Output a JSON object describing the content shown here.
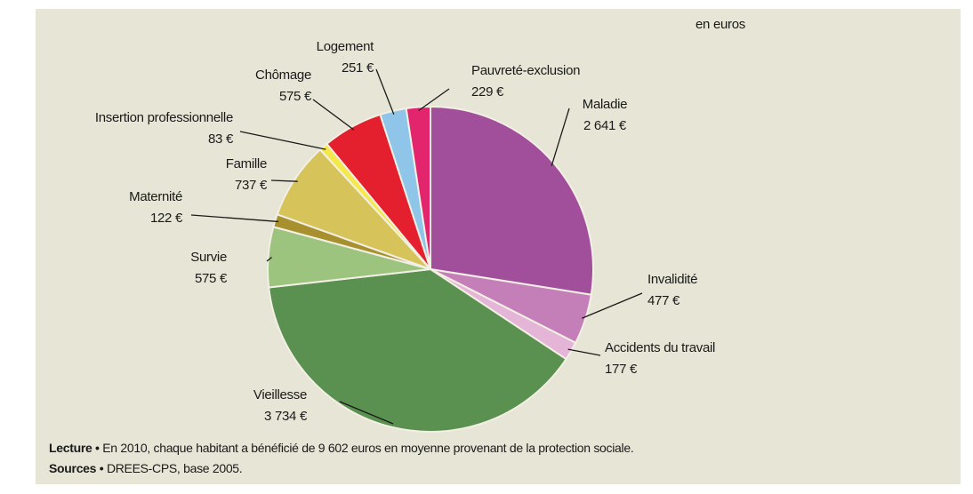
{
  "chart_data": {
    "type": "pie",
    "subtitle": "en euros",
    "categories": [
      "Maladie",
      "Invalidité",
      "Accidents du travail",
      "Vieillesse",
      "Survie",
      "Maternité",
      "Famille",
      "Insertion professionnelle",
      "Chômage",
      "Logement",
      "Pauvreté-exclusion"
    ],
    "values": [
      2641,
      477,
      177,
      3734,
      575,
      122,
      737,
      83,
      575,
      251,
      229
    ],
    "value_labels": [
      "2 641 €",
      "477 €",
      "177 €",
      "3 734 €",
      "575 €",
      "122 €",
      "737 €",
      "83 €",
      "575 €",
      "251 €",
      "229 €"
    ],
    "colors": [
      "#a24f9b",
      "#c47fb9",
      "#e4b5d7",
      "#5a9150",
      "#9dc47f",
      "#a8902f",
      "#d6c45a",
      "#f4e84a",
      "#e4202f",
      "#8fc5e9",
      "#e2256d"
    ],
    "notes": [
      {
        "label": "Lecture •",
        "text": "En 2010, chaque habitant a bénéficié de 9 602 euros en moyenne provenant de la protection sociale."
      },
      {
        "label": "Sources •",
        "text": "DREES-CPS, base 2005."
      }
    ]
  }
}
